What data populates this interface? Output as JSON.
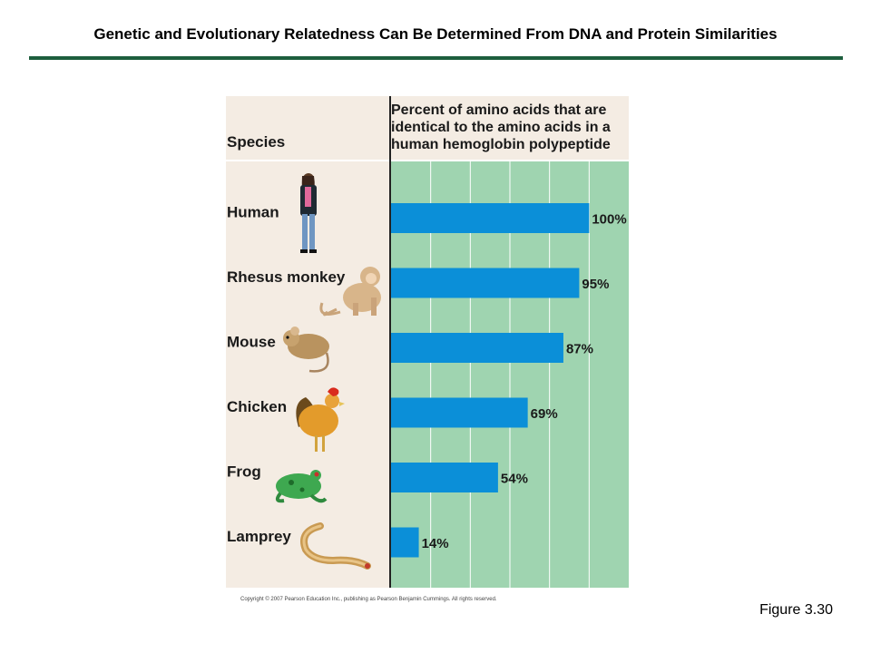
{
  "slide": {
    "title": "Genetic and Evolutionary Relatedness Can Be Determined From DNA and Protein Similarities",
    "figure_label": "Figure 3.30"
  },
  "chart_data": {
    "type": "bar",
    "orientation": "horizontal",
    "category_header": "Species",
    "value_header": [
      "Percent of amino acids that are",
      "identical to the amino acids in a",
      "human hemoglobin polypeptide"
    ],
    "categories": [
      "Human",
      "Rhesus monkey",
      "Mouse",
      "Chicken",
      "Frog",
      "Lamprey"
    ],
    "values": [
      100,
      95,
      87,
      69,
      54,
      14
    ],
    "data_labels": [
      "100%",
      "95%",
      "87%",
      "69%",
      "54%",
      "14%"
    ],
    "xlim": [
      0,
      120
    ],
    "grid": true,
    "colors": {
      "bar": "#0b8fd8",
      "plot_bg": "#9fd4b0",
      "label_bg": "#f4ece3",
      "grid": "#ffffff"
    },
    "icons": [
      "human-woman-icon",
      "monkey-icon",
      "mouse-icon",
      "rooster-icon",
      "frog-icon",
      "lamprey-icon"
    ]
  },
  "copyright": "Copyright © 2007 Pearson Education Inc., publishing as Pearson Benjamin Cummings. All rights reserved."
}
